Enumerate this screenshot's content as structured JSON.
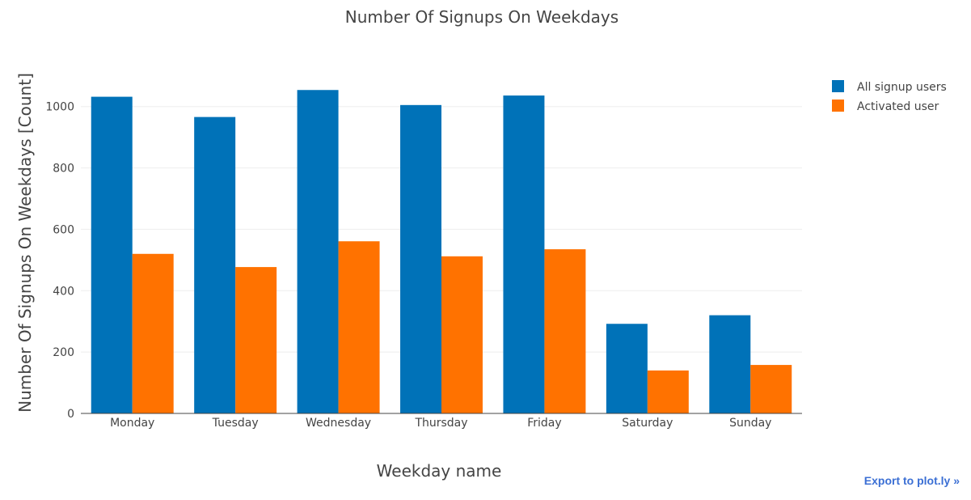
{
  "chart_data": {
    "type": "bar",
    "title": "Number Of Signups On Weekdays",
    "xlabel": "Weekday name",
    "ylabel": "Number Of Signups On Weekdays [Count]",
    "categories": [
      "Monday",
      "Tuesday",
      "Wednesday",
      "Thursday",
      "Friday",
      "Saturday",
      "Sunday"
    ],
    "series": [
      {
        "name": "All signup users",
        "color": "#0072b8",
        "values": [
          1032,
          966,
          1054,
          1005,
          1036,
          292,
          320
        ]
      },
      {
        "name": "Activated user",
        "color": "#ff7200",
        "values": [
          520,
          477,
          561,
          512,
          535,
          140,
          158
        ]
      }
    ],
    "ylim": [
      0,
      1110
    ],
    "yticks": [
      0,
      200,
      400,
      600,
      800,
      1000
    ],
    "grid": true,
    "legend_position": "top-right"
  },
  "export_link": "Export to plot.ly »"
}
